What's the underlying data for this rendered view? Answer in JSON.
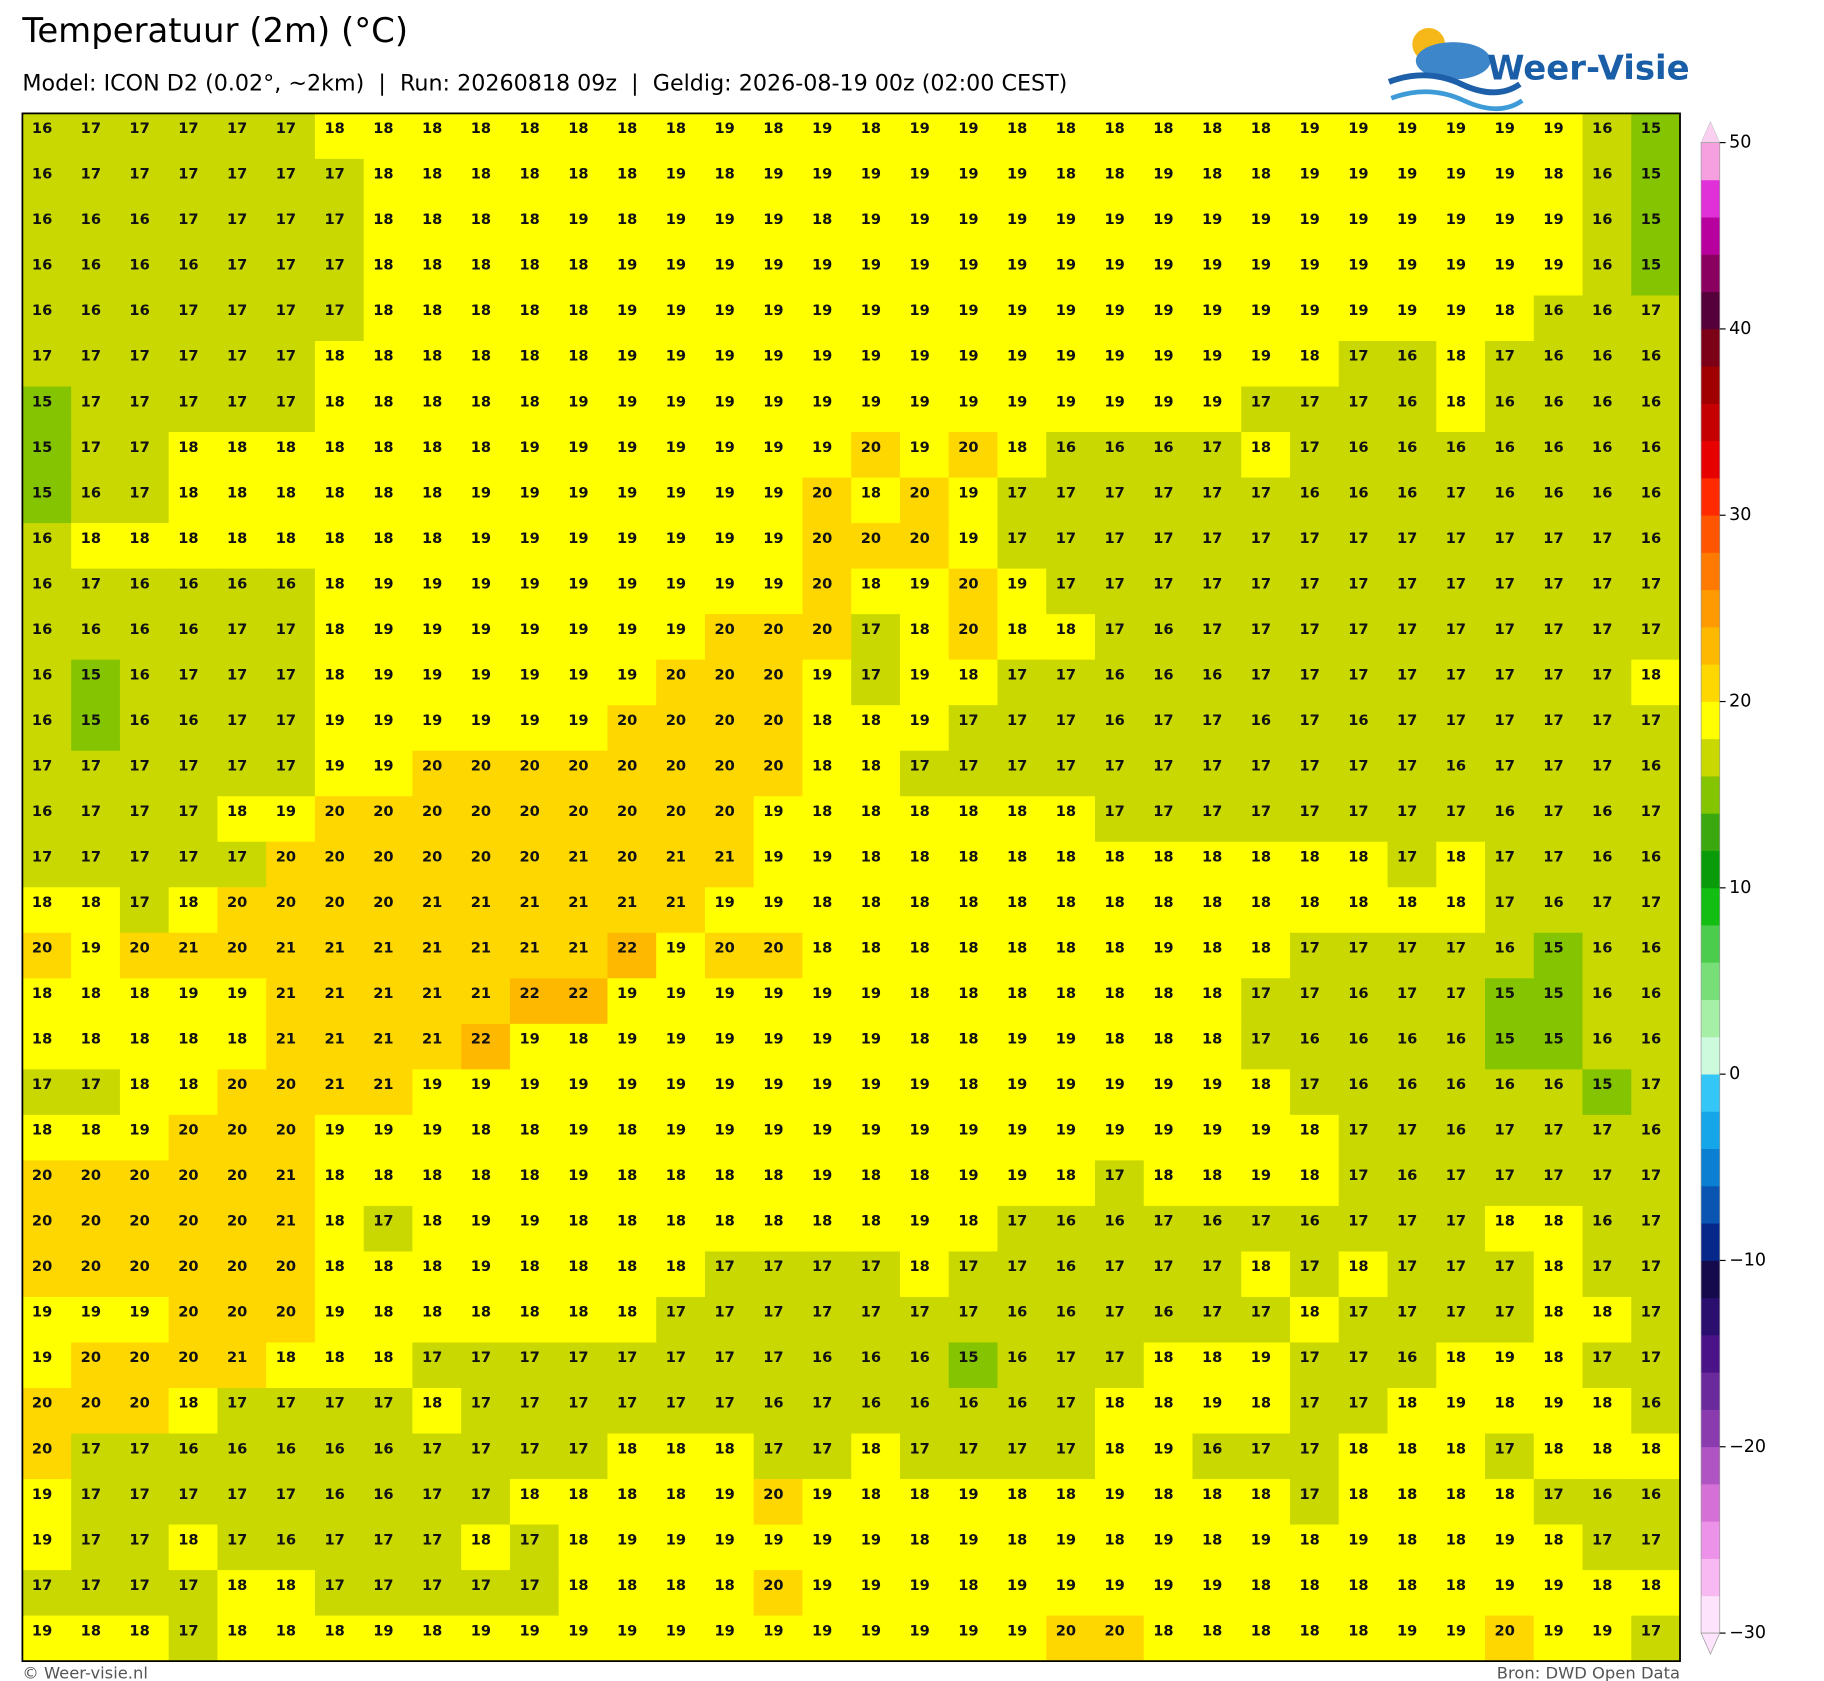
{
  "header": {
    "title": "Temperatuur (2m) (°C)",
    "subtitle": "Model: ICON D2 (0.02°, ~2km)  |  Run: 20260818 09z  |  Geldig: 2026-08-19 00z (02:00 CEST)"
  },
  "logo": {
    "text": "Weer-Visie"
  },
  "grid": {
    "rows": [
      [
        16,
        17,
        17,
        17,
        17,
        17,
        18,
        18,
        18,
        18,
        18,
        18,
        18,
        18,
        19,
        18,
        19,
        18,
        19,
        19,
        18,
        18,
        18,
        18,
        18,
        18,
        19,
        19,
        19,
        19,
        19,
        19,
        16,
        15
      ],
      [
        16,
        17,
        17,
        17,
        17,
        17,
        17,
        18,
        18,
        18,
        18,
        18,
        18,
        19,
        18,
        19,
        19,
        19,
        19,
        19,
        19,
        18,
        18,
        19,
        18,
        18,
        19,
        19,
        19,
        19,
        19,
        18,
        16,
        15
      ],
      [
        16,
        16,
        16,
        17,
        17,
        17,
        17,
        18,
        18,
        18,
        18,
        19,
        18,
        19,
        19,
        19,
        18,
        19,
        19,
        19,
        19,
        19,
        19,
        19,
        19,
        19,
        19,
        19,
        19,
        19,
        19,
        19,
        16,
        15
      ],
      [
        16,
        16,
        16,
        16,
        17,
        17,
        17,
        18,
        18,
        18,
        18,
        18,
        19,
        19,
        19,
        19,
        19,
        19,
        19,
        19,
        19,
        19,
        19,
        19,
        19,
        19,
        19,
        19,
        19,
        19,
        19,
        19,
        16,
        15
      ],
      [
        16,
        16,
        16,
        17,
        17,
        17,
        17,
        18,
        18,
        18,
        18,
        18,
        19,
        19,
        19,
        19,
        19,
        19,
        19,
        19,
        19,
        19,
        19,
        19,
        19,
        19,
        19,
        19,
        19,
        19,
        18,
        16,
        16,
        17
      ],
      [
        17,
        17,
        17,
        17,
        17,
        17,
        18,
        18,
        18,
        18,
        18,
        18,
        19,
        19,
        19,
        19,
        19,
        19,
        19,
        19,
        19,
        19,
        19,
        19,
        19,
        19,
        18,
        17,
        16,
        18,
        17,
        16,
        16,
        16
      ],
      [
        15,
        17,
        17,
        17,
        17,
        17,
        18,
        18,
        18,
        18,
        18,
        19,
        19,
        19,
        19,
        19,
        19,
        19,
        19,
        19,
        19,
        19,
        19,
        19,
        19,
        17,
        17,
        17,
        16,
        18,
        16,
        16,
        16,
        16
      ],
      [
        15,
        17,
        17,
        18,
        18,
        18,
        18,
        18,
        18,
        18,
        19,
        19,
        19,
        19,
        19,
        19,
        19,
        20,
        19,
        20,
        18,
        16,
        16,
        16,
        17,
        18,
        17,
        16,
        16,
        16,
        16,
        16,
        16,
        16
      ],
      [
        15,
        16,
        17,
        18,
        18,
        18,
        18,
        18,
        18,
        19,
        19,
        19,
        19,
        19,
        19,
        19,
        20,
        18,
        20,
        19,
        17,
        17,
        17,
        17,
        17,
        17,
        16,
        16,
        16,
        17,
        16,
        16,
        16,
        16
      ],
      [
        16,
        18,
        18,
        18,
        18,
        18,
        18,
        18,
        18,
        19,
        19,
        19,
        19,
        19,
        19,
        19,
        20,
        20,
        20,
        19,
        17,
        17,
        17,
        17,
        17,
        17,
        17,
        17,
        17,
        17,
        17,
        17,
        17,
        16
      ],
      [
        16,
        17,
        16,
        16,
        16,
        16,
        18,
        19,
        19,
        19,
        19,
        19,
        19,
        19,
        19,
        19,
        20,
        18,
        19,
        20,
        19,
        17,
        17,
        17,
        17,
        17,
        17,
        17,
        17,
        17,
        17,
        17,
        17,
        17
      ],
      [
        16,
        16,
        16,
        16,
        17,
        17,
        18,
        19,
        19,
        19,
        19,
        19,
        19,
        19,
        20,
        20,
        20,
        17,
        18,
        20,
        18,
        18,
        17,
        16,
        17,
        17,
        17,
        17,
        17,
        17,
        17,
        17,
        17,
        17
      ],
      [
        16,
        15,
        16,
        17,
        17,
        17,
        18,
        19,
        19,
        19,
        19,
        19,
        19,
        20,
        20,
        20,
        19,
        17,
        19,
        18,
        17,
        17,
        16,
        16,
        16,
        17,
        17,
        17,
        17,
        17,
        17,
        17,
        17,
        18
      ],
      [
        16,
        15,
        16,
        16,
        17,
        17,
        19,
        19,
        19,
        19,
        19,
        19,
        20,
        20,
        20,
        20,
        18,
        18,
        19,
        17,
        17,
        17,
        16,
        17,
        17,
        16,
        17,
        16,
        17,
        17,
        17,
        17,
        17,
        17
      ],
      [
        17,
        17,
        17,
        17,
        17,
        17,
        19,
        19,
        20,
        20,
        20,
        20,
        20,
        20,
        20,
        20,
        18,
        18,
        17,
        17,
        17,
        17,
        17,
        17,
        17,
        17,
        17,
        17,
        17,
        16,
        17,
        17,
        17,
        16
      ],
      [
        16,
        17,
        17,
        17,
        18,
        19,
        20,
        20,
        20,
        20,
        20,
        20,
        20,
        20,
        20,
        19,
        18,
        18,
        18,
        18,
        18,
        18,
        17,
        17,
        17,
        17,
        17,
        17,
        17,
        17,
        16,
        17,
        16,
        17
      ],
      [
        17,
        17,
        17,
        17,
        17,
        20,
        20,
        20,
        20,
        20,
        20,
        21,
        20,
        21,
        21,
        19,
        19,
        18,
        18,
        18,
        18,
        18,
        18,
        18,
        18,
        18,
        18,
        18,
        17,
        18,
        17,
        17,
        16,
        16
      ],
      [
        18,
        18,
        17,
        18,
        20,
        20,
        20,
        20,
        21,
        21,
        21,
        21,
        21,
        21,
        19,
        19,
        18,
        18,
        18,
        18,
        18,
        18,
        18,
        18,
        18,
        18,
        18,
        18,
        18,
        18,
        17,
        16,
        17,
        17
      ],
      [
        20,
        19,
        20,
        21,
        20,
        21,
        21,
        21,
        21,
        21,
        21,
        21,
        22,
        19,
        20,
        20,
        18,
        18,
        18,
        18,
        18,
        18,
        18,
        19,
        18,
        18,
        17,
        17,
        17,
        17,
        16,
        15,
        16,
        16
      ],
      [
        18,
        18,
        18,
        19,
        19,
        21,
        21,
        21,
        21,
        21,
        22,
        22,
        19,
        19,
        19,
        19,
        19,
        19,
        18,
        18,
        18,
        18,
        18,
        18,
        18,
        17,
        17,
        16,
        17,
        17,
        15,
        15,
        16,
        16
      ],
      [
        18,
        18,
        18,
        18,
        18,
        21,
        21,
        21,
        21,
        22,
        19,
        18,
        19,
        19,
        19,
        19,
        19,
        19,
        18,
        18,
        19,
        19,
        18,
        18,
        18,
        17,
        16,
        16,
        16,
        16,
        15,
        15,
        16,
        16
      ],
      [
        17,
        17,
        18,
        18,
        20,
        20,
        21,
        21,
        19,
        19,
        19,
        19,
        19,
        19,
        19,
        19,
        19,
        19,
        19,
        18,
        19,
        19,
        19,
        19,
        19,
        18,
        17,
        16,
        16,
        16,
        16,
        16,
        15,
        17
      ],
      [
        18,
        18,
        19,
        20,
        20,
        20,
        19,
        19,
        19,
        18,
        18,
        19,
        18,
        19,
        19,
        19,
        19,
        19,
        19,
        19,
        19,
        19,
        19,
        19,
        19,
        19,
        18,
        17,
        17,
        16,
        17,
        17,
        17,
        16
      ],
      [
        20,
        20,
        20,
        20,
        20,
        21,
        18,
        18,
        18,
        18,
        18,
        19,
        18,
        18,
        18,
        18,
        19,
        18,
        18,
        19,
        19,
        18,
        17,
        18,
        18,
        19,
        18,
        17,
        16,
        17,
        17,
        17,
        17,
        17
      ],
      [
        20,
        20,
        20,
        20,
        20,
        21,
        18,
        17,
        18,
        19,
        19,
        18,
        18,
        18,
        18,
        18,
        18,
        18,
        19,
        18,
        17,
        16,
        16,
        17,
        16,
        17,
        16,
        17,
        17,
        17,
        18,
        18,
        16,
        17
      ],
      [
        20,
        20,
        20,
        20,
        20,
        20,
        18,
        18,
        18,
        19,
        18,
        18,
        18,
        18,
        17,
        17,
        17,
        17,
        18,
        17,
        17,
        16,
        17,
        17,
        17,
        18,
        17,
        18,
        17,
        17,
        17,
        18,
        17,
        17
      ],
      [
        19,
        19,
        19,
        20,
        20,
        20,
        19,
        18,
        18,
        18,
        18,
        18,
        18,
        17,
        17,
        17,
        17,
        17,
        17,
        17,
        16,
        16,
        17,
        16,
        17,
        17,
        18,
        17,
        17,
        17,
        17,
        18,
        18,
        17
      ],
      [
        19,
        20,
        20,
        20,
        21,
        18,
        18,
        18,
        17,
        17,
        17,
        17,
        17,
        17,
        17,
        17,
        16,
        16,
        16,
        15,
        16,
        17,
        17,
        18,
        18,
        19,
        17,
        17,
        16,
        18,
        19,
        18,
        17,
        17
      ],
      [
        20,
        20,
        20,
        18,
        17,
        17,
        17,
        17,
        18,
        17,
        17,
        17,
        17,
        17,
        17,
        16,
        17,
        16,
        16,
        16,
        16,
        17,
        18,
        18,
        19,
        18,
        17,
        17,
        18,
        19,
        18,
        19,
        18,
        16
      ],
      [
        20,
        17,
        17,
        16,
        16,
        16,
        16,
        16,
        17,
        17,
        17,
        17,
        18,
        18,
        18,
        17,
        17,
        18,
        17,
        17,
        17,
        17,
        18,
        19,
        16,
        17,
        17,
        18,
        18,
        18,
        17,
        18,
        18,
        18
      ],
      [
        19,
        17,
        17,
        17,
        17,
        17,
        16,
        16,
        17,
        17,
        18,
        18,
        18,
        18,
        19,
        20,
        19,
        18,
        18,
        19,
        18,
        18,
        19,
        18,
        18,
        18,
        17,
        18,
        18,
        18,
        18,
        17,
        16,
        16
      ],
      [
        19,
        17,
        17,
        18,
        17,
        16,
        17,
        17,
        17,
        18,
        17,
        18,
        19,
        19,
        19,
        19,
        19,
        19,
        18,
        19,
        18,
        19,
        18,
        19,
        18,
        19,
        18,
        19,
        18,
        18,
        19,
        18,
        17,
        17
      ],
      [
        17,
        17,
        17,
        17,
        18,
        18,
        17,
        17,
        17,
        17,
        17,
        18,
        18,
        18,
        18,
        20,
        19,
        19,
        19,
        18,
        19,
        19,
        19,
        19,
        19,
        18,
        18,
        18,
        18,
        18,
        19,
        19,
        18,
        18
      ],
      [
        19,
        18,
        18,
        17,
        18,
        18,
        18,
        19,
        18,
        19,
        19,
        19,
        19,
        19,
        19,
        19,
        19,
        19,
        19,
        19,
        19,
        20,
        20,
        18,
        18,
        18,
        18,
        18,
        19,
        19,
        20,
        19,
        19,
        17
      ]
    ]
  },
  "colorbar": {
    "lim": [
      -30,
      50
    ],
    "ticks": [
      {
        "value": -30,
        "label": "−30"
      },
      {
        "value": -20,
        "label": "−20"
      },
      {
        "value": -10,
        "label": "−10"
      },
      0,
      10,
      20,
      30,
      40,
      50
    ],
    "colors": [
      "#fde3fb",
      "#f8b8f2",
      "#ec92e8",
      "#d470d6",
      "#b053c3",
      "#8a3caf",
      "#6a2a9c",
      "#4a1488",
      "#2b0f6e",
      "#140a4c",
      "#06288a",
      "#0a55b2",
      "#0b7fd2",
      "#14a6e8",
      "#33c6f6",
      "#cdfadd",
      "#a6efa6",
      "#78de78",
      "#4ccc4c",
      "#12be12",
      "#099b09",
      "#3aa80e",
      "#84c400",
      "#c8d800",
      "#ffff00",
      "#ffd700",
      "#ffb800",
      "#ff9a00",
      "#ff7a00",
      "#ff5500",
      "#ff2a00",
      "#e60000",
      "#c40000",
      "#a00000",
      "#7c0016",
      "#55003a",
      "#8a0060",
      "#b8009e",
      "#e030d8",
      "#f7a0e0"
    ]
  },
  "footer": {
    "left": "© Weer-visie.nl",
    "right": "Bron: DWD Open Data"
  }
}
